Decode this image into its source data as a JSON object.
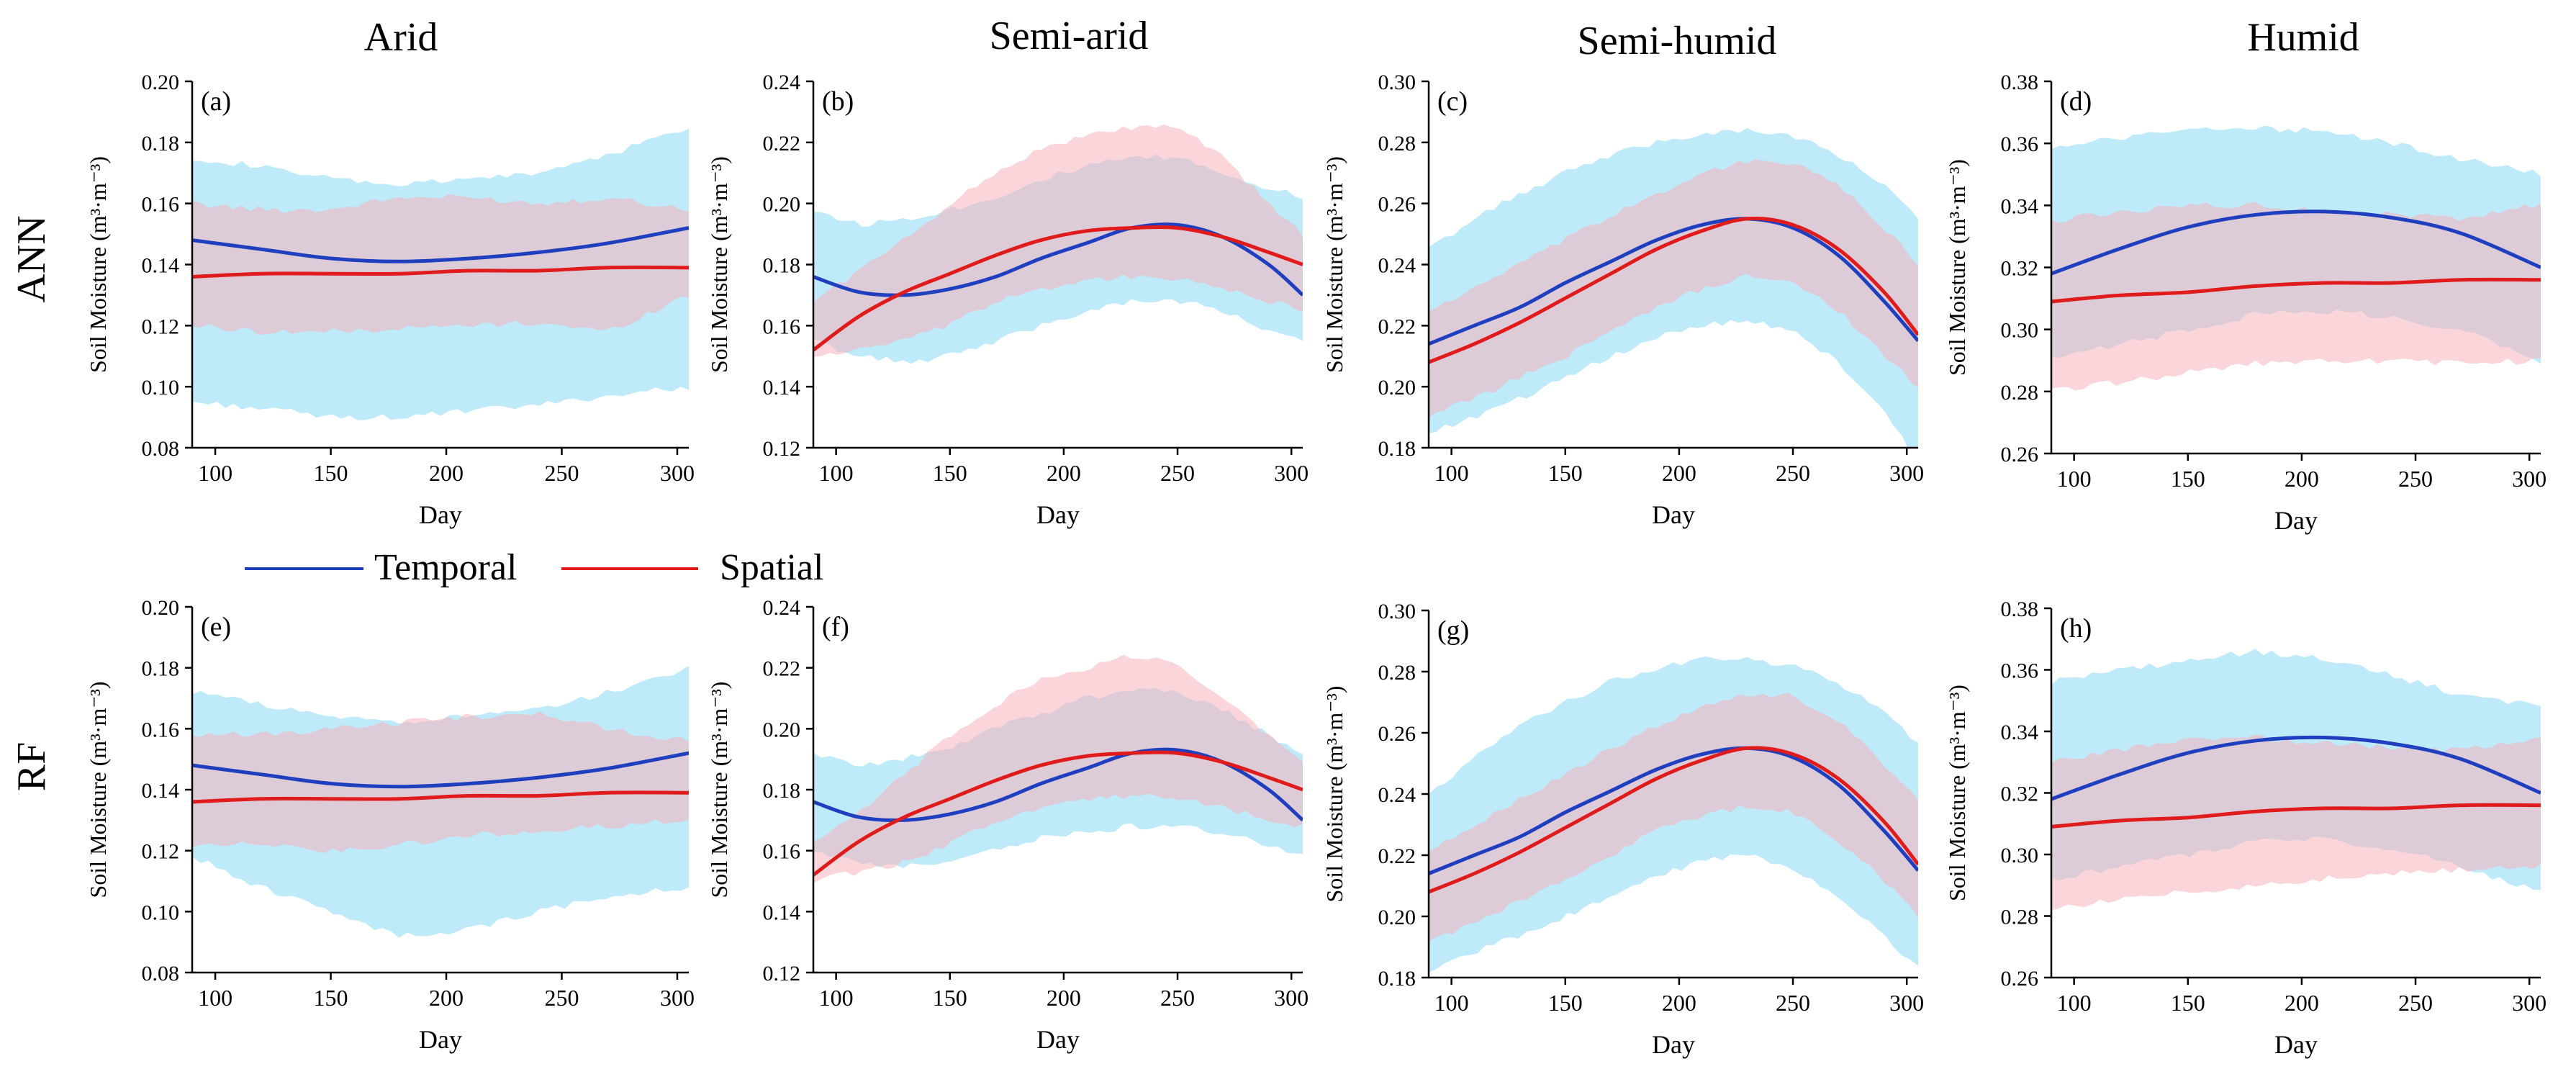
{
  "figure": {
    "column_titles": [
      "Arid",
      "Semi-arid",
      "Semi-humid",
      "Humid"
    ],
    "row_titles": [
      "ANN",
      "RF"
    ],
    "legend": [
      {
        "name": "Temporal",
        "color": "#1f3fbf"
      },
      {
        "name": "Spatial",
        "color": "#e01b1b"
      }
    ],
    "band_colors": {
      "temporal": "#7fd6f5",
      "spatial": "#f5b3ba"
    }
  },
  "chart_data": [
    {
      "type": "line",
      "panel_label": "(a)",
      "title": "Arid",
      "model": "ANN",
      "xlabel": "Day",
      "ylabel": "Soil Moisture (m³·m⁻³)",
      "xlim": [
        90,
        305
      ],
      "ylim": [
        0.08,
        0.2
      ],
      "xticks": [
        "100",
        "150",
        "200",
        "250",
        "300"
      ],
      "yticks": [
        "0.08",
        "0.10",
        "0.12",
        "0.14",
        "0.16",
        "0.18",
        "0.20"
      ],
      "x": [
        90,
        120,
        150,
        180,
        210,
        240,
        270,
        305
      ],
      "series": [
        {
          "name": "Temporal",
          "values": [
            0.148,
            0.145,
            0.142,
            0.141,
            0.142,
            0.144,
            0.147,
            0.152
          ],
          "band_low": [
            0.095,
            0.093,
            0.09,
            0.09,
            0.092,
            0.094,
            0.097,
            0.1
          ],
          "band_high": [
            0.175,
            0.172,
            0.168,
            0.166,
            0.168,
            0.17,
            0.176,
            0.185
          ]
        },
        {
          "name": "Spatial",
          "values": [
            0.136,
            0.137,
            0.137,
            0.137,
            0.138,
            0.138,
            0.139,
            0.139
          ],
          "band_low": [
            0.12,
            0.118,
            0.118,
            0.119,
            0.12,
            0.121,
            0.118,
            0.13
          ],
          "band_high": [
            0.16,
            0.158,
            0.158,
            0.162,
            0.162,
            0.16,
            0.162,
            0.158
          ]
        }
      ]
    },
    {
      "type": "line",
      "panel_label": "(b)",
      "title": "Semi-arid",
      "model": "ANN",
      "xlabel": "Day",
      "ylabel": "Soil Moisture (m³·m⁻³)",
      "xlim": [
        90,
        305
      ],
      "ylim": [
        0.12,
        0.24
      ],
      "xticks": [
        "100",
        "150",
        "200",
        "250",
        "300"
      ],
      "yticks": [
        "0.12",
        "0.14",
        "0.16",
        "0.18",
        "0.20",
        "0.22",
        "0.24"
      ],
      "x": [
        90,
        110,
        130,
        150,
        170,
        190,
        210,
        230,
        250,
        270,
        290,
        305
      ],
      "series": [
        {
          "name": "Temporal",
          "values": [
            0.176,
            0.171,
            0.17,
            0.172,
            0.176,
            0.182,
            0.187,
            0.192,
            0.193,
            0.189,
            0.18,
            0.17
          ],
          "band_low": [
            0.155,
            0.15,
            0.148,
            0.15,
            0.155,
            0.16,
            0.165,
            0.168,
            0.168,
            0.165,
            0.158,
            0.155
          ],
          "band_high": [
            0.198,
            0.193,
            0.195,
            0.198,
            0.202,
            0.208,
            0.212,
            0.215,
            0.215,
            0.21,
            0.205,
            0.202
          ]
        },
        {
          "name": "Spatial",
          "values": [
            0.152,
            0.163,
            0.171,
            0.177,
            0.183,
            0.188,
            0.191,
            0.192,
            0.192,
            0.189,
            0.184,
            0.18
          ],
          "band_low": [
            0.15,
            0.152,
            0.155,
            0.16,
            0.168,
            0.172,
            0.175,
            0.176,
            0.175,
            0.172,
            0.168,
            0.165
          ],
          "band_high": [
            0.168,
            0.178,
            0.188,
            0.2,
            0.21,
            0.218,
            0.222,
            0.225,
            0.225,
            0.215,
            0.2,
            0.19
          ]
        }
      ]
    },
    {
      "type": "line",
      "panel_label": "(c)",
      "title": "Semi-humid",
      "model": "ANN",
      "xlabel": "Day",
      "ylabel": "Soil Moisture (m³·m⁻³)",
      "xlim": [
        90,
        305
      ],
      "ylim": [
        0.18,
        0.3
      ],
      "xticks": [
        "100",
        "150",
        "200",
        "250",
        "300"
      ],
      "yticks": [
        "0.18",
        "0.20",
        "0.22",
        "0.24",
        "0.26",
        "0.28",
        "0.30"
      ],
      "x": [
        90,
        110,
        130,
        150,
        170,
        190,
        210,
        230,
        250,
        270,
        290,
        305
      ],
      "series": [
        {
          "name": "Temporal",
          "values": [
            0.214,
            0.22,
            0.226,
            0.234,
            0.241,
            0.248,
            0.253,
            0.255,
            0.252,
            0.243,
            0.228,
            0.215
          ],
          "band_low": [
            0.185,
            0.19,
            0.196,
            0.203,
            0.21,
            0.216,
            0.22,
            0.222,
            0.218,
            0.208,
            0.192,
            0.175
          ],
          "band_high": [
            0.245,
            0.255,
            0.263,
            0.27,
            0.276,
            0.28,
            0.283,
            0.284,
            0.282,
            0.276,
            0.266,
            0.255
          ]
        },
        {
          "name": "Spatial",
          "values": [
            0.208,
            0.214,
            0.221,
            0.229,
            0.237,
            0.245,
            0.251,
            0.255,
            0.253,
            0.245,
            0.231,
            0.217
          ],
          "band_low": [
            0.19,
            0.196,
            0.203,
            0.21,
            0.218,
            0.226,
            0.232,
            0.236,
            0.234,
            0.225,
            0.21,
            0.2
          ],
          "band_high": [
            0.225,
            0.232,
            0.24,
            0.248,
            0.256,
            0.263,
            0.27,
            0.274,
            0.273,
            0.266,
            0.252,
            0.24
          ]
        }
      ]
    },
    {
      "type": "line",
      "panel_label": "(d)",
      "title": "Humid",
      "model": "ANN",
      "xlabel": "Day",
      "ylabel": "Soil Moisture (m³·m⁻³)",
      "xlim": [
        90,
        305
      ],
      "ylim": [
        0.26,
        0.38
      ],
      "xticks": [
        "100",
        "150",
        "200",
        "250",
        "300"
      ],
      "yticks": [
        "0.26",
        "0.28",
        "0.30",
        "0.32",
        "0.34",
        "0.36",
        "0.38"
      ],
      "x": [
        90,
        120,
        150,
        180,
        210,
        240,
        270,
        305
      ],
      "series": [
        {
          "name": "Temporal",
          "values": [
            0.318,
            0.326,
            0.333,
            0.337,
            0.338,
            0.336,
            0.331,
            0.32
          ],
          "band_low": [
            0.29,
            0.295,
            0.3,
            0.305,
            0.306,
            0.304,
            0.3,
            0.29
          ],
          "band_high": [
            0.358,
            0.362,
            0.364,
            0.365,
            0.364,
            0.36,
            0.355,
            0.35
          ]
        },
        {
          "name": "Spatial",
          "values": [
            0.309,
            0.311,
            0.312,
            0.314,
            0.315,
            0.315,
            0.316,
            0.316
          ],
          "band_low": [
            0.28,
            0.283,
            0.286,
            0.289,
            0.29,
            0.29,
            0.289,
            0.29
          ],
          "band_high": [
            0.335,
            0.338,
            0.34,
            0.34,
            0.338,
            0.337,
            0.336,
            0.34
          ]
        }
      ]
    },
    {
      "type": "line",
      "panel_label": "(e)",
      "title": "Arid",
      "model": "RF",
      "xlabel": "Day",
      "ylabel": "Soil Moisture (m³·m⁻³)",
      "xlim": [
        90,
        305
      ],
      "ylim": [
        0.08,
        0.2
      ],
      "xticks": [
        "100",
        "150",
        "200",
        "250",
        "300"
      ],
      "yticks": [
        "0.08",
        "0.10",
        "0.12",
        "0.14",
        "0.16",
        "0.18",
        "0.20"
      ],
      "x": [
        90,
        120,
        150,
        180,
        210,
        240,
        270,
        305
      ],
      "series": [
        {
          "name": "Temporal",
          "values": [
            0.148,
            0.145,
            0.142,
            0.141,
            0.142,
            0.144,
            0.147,
            0.152
          ],
          "band_low": [
            0.118,
            0.108,
            0.1,
            0.092,
            0.094,
            0.1,
            0.105,
            0.108
          ],
          "band_high": [
            0.172,
            0.168,
            0.164,
            0.162,
            0.164,
            0.166,
            0.172,
            0.18
          ]
        },
        {
          "name": "Spatial",
          "values": [
            0.136,
            0.137,
            0.137,
            0.137,
            0.138,
            0.138,
            0.139,
            0.139
          ],
          "band_low": [
            0.122,
            0.122,
            0.12,
            0.122,
            0.125,
            0.126,
            0.128,
            0.13
          ],
          "band_high": [
            0.158,
            0.158,
            0.16,
            0.162,
            0.164,
            0.165,
            0.16,
            0.156
          ]
        }
      ]
    },
    {
      "type": "line",
      "panel_label": "(f)",
      "title": "Semi-arid",
      "model": "RF",
      "xlabel": "Day",
      "ylabel": "Soil Moisture (m³·m⁻³)",
      "xlim": [
        90,
        305
      ],
      "ylim": [
        0.12,
        0.24
      ],
      "xticks": [
        "100",
        "150",
        "200",
        "250",
        "300"
      ],
      "yticks": [
        "0.12",
        "0.14",
        "0.16",
        "0.18",
        "0.20",
        "0.22",
        "0.24"
      ],
      "x": [
        90,
        110,
        130,
        150,
        170,
        190,
        210,
        230,
        250,
        270,
        290,
        305
      ],
      "series": [
        {
          "name": "Temporal",
          "values": [
            0.176,
            0.171,
            0.17,
            0.172,
            0.176,
            0.182,
            0.187,
            0.192,
            0.193,
            0.189,
            0.18,
            0.17
          ],
          "band_low": [
            0.16,
            0.156,
            0.155,
            0.157,
            0.16,
            0.164,
            0.166,
            0.168,
            0.168,
            0.166,
            0.162,
            0.158
          ],
          "band_high": [
            0.192,
            0.188,
            0.19,
            0.194,
            0.2,
            0.205,
            0.21,
            0.213,
            0.212,
            0.206,
            0.198,
            0.192
          ]
        },
        {
          "name": "Spatial",
          "values": [
            0.152,
            0.163,
            0.171,
            0.177,
            0.183,
            0.188,
            0.191,
            0.192,
            0.192,
            0.189,
            0.184,
            0.18
          ],
          "band_low": [
            0.15,
            0.153,
            0.156,
            0.162,
            0.17,
            0.174,
            0.177,
            0.178,
            0.177,
            0.174,
            0.17,
            0.168
          ],
          "band_high": [
            0.162,
            0.172,
            0.185,
            0.198,
            0.208,
            0.216,
            0.22,
            0.224,
            0.222,
            0.21,
            0.198,
            0.19
          ]
        }
      ]
    },
    {
      "type": "line",
      "panel_label": "(g)",
      "title": "Semi-humid",
      "model": "RF",
      "xlabel": "Day",
      "ylabel": "Soil Moisture (m³·m⁻³)",
      "xlim": [
        90,
        305
      ],
      "ylim": [
        0.18,
        0.3
      ],
      "xticks": [
        "100",
        "150",
        "200",
        "250",
        "300"
      ],
      "yticks": [
        "0.18",
        "0.20",
        "0.22",
        "0.24",
        "0.26",
        "0.28",
        "0.30"
      ],
      "x": [
        90,
        110,
        130,
        150,
        170,
        190,
        210,
        230,
        250,
        270,
        290,
        305
      ],
      "series": [
        {
          "name": "Temporal",
          "values": [
            0.214,
            0.22,
            0.226,
            0.234,
            0.241,
            0.248,
            0.253,
            0.255,
            0.252,
            0.243,
            0.228,
            0.215
          ],
          "band_low": [
            0.182,
            0.188,
            0.194,
            0.2,
            0.207,
            0.213,
            0.218,
            0.22,
            0.216,
            0.206,
            0.194,
            0.183
          ],
          "band_high": [
            0.24,
            0.252,
            0.262,
            0.27,
            0.277,
            0.281,
            0.284,
            0.284,
            0.282,
            0.276,
            0.267,
            0.256
          ]
        },
        {
          "name": "Spatial",
          "values": [
            0.208,
            0.214,
            0.221,
            0.229,
            0.237,
            0.245,
            0.251,
            0.255,
            0.253,
            0.245,
            0.231,
            0.217
          ],
          "band_low": [
            0.192,
            0.198,
            0.205,
            0.212,
            0.22,
            0.228,
            0.233,
            0.236,
            0.234,
            0.225,
            0.212,
            0.2
          ],
          "band_high": [
            0.222,
            0.23,
            0.238,
            0.246,
            0.255,
            0.262,
            0.269,
            0.273,
            0.272,
            0.264,
            0.25,
            0.238
          ]
        }
      ]
    },
    {
      "type": "line",
      "panel_label": "(h)",
      "title": "Humid",
      "model": "RF",
      "xlabel": "Day",
      "ylabel": "Soil Moisture (m³·m⁻³)",
      "xlim": [
        90,
        305
      ],
      "ylim": [
        0.26,
        0.38
      ],
      "xticks": [
        "100",
        "150",
        "200",
        "250",
        "300"
      ],
      "yticks": [
        "0.26",
        "0.28",
        "0.30",
        "0.32",
        "0.34",
        "0.36",
        "0.38"
      ],
      "x": [
        90,
        120,
        150,
        180,
        210,
        240,
        270,
        305
      ],
      "series": [
        {
          "name": "Temporal",
          "values": [
            0.318,
            0.326,
            0.333,
            0.337,
            0.338,
            0.336,
            0.331,
            0.32
          ],
          "band_low": [
            0.292,
            0.296,
            0.3,
            0.304,
            0.305,
            0.302,
            0.296,
            0.288
          ],
          "band_high": [
            0.356,
            0.36,
            0.363,
            0.366,
            0.364,
            0.358,
            0.352,
            0.348
          ]
        },
        {
          "name": "Spatial",
          "values": [
            0.309,
            0.311,
            0.312,
            0.314,
            0.315,
            0.315,
            0.316,
            0.316
          ],
          "band_low": [
            0.282,
            0.286,
            0.288,
            0.29,
            0.292,
            0.294,
            0.295,
            0.296
          ],
          "band_high": [
            0.33,
            0.334,
            0.338,
            0.338,
            0.336,
            0.335,
            0.334,
            0.338
          ]
        }
      ]
    }
  ]
}
